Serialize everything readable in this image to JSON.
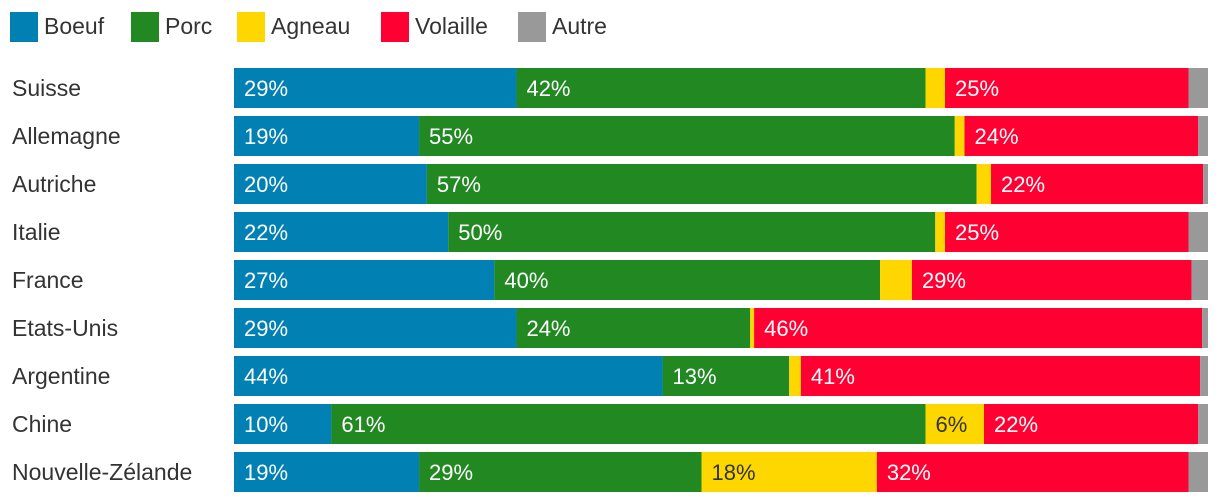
{
  "chart_data": {
    "type": "bar",
    "orientation": "horizontal",
    "stacked": true,
    "normalized": true,
    "legend_position": "top-left",
    "categories": [
      "Suisse",
      "Allemagne",
      "Autriche",
      "Italie",
      "France",
      "Etats-Unis",
      "Argentine",
      "Chine",
      "Nouvelle-Zélande"
    ],
    "series": [
      {
        "name": "Boeuf",
        "color": "#0080b3",
        "label_color": "#ffffff",
        "values": [
          29,
          19,
          20,
          22,
          27,
          29,
          44,
          10,
          19
        ],
        "labels": [
          "29%",
          "19%",
          "20%",
          "22%",
          "27%",
          "29%",
          "44%",
          "10%",
          "19%"
        ]
      },
      {
        "name": "Porc",
        "color": "#228822",
        "label_color": "#ffffff",
        "values": [
          42,
          55,
          57,
          50,
          40,
          24,
          13,
          61,
          29
        ],
        "labels": [
          "42%",
          "55%",
          "57%",
          "50%",
          "40%",
          "24%",
          "13%",
          "61%",
          "29%"
        ]
      },
      {
        "name": "Agneau",
        "color": "#ffd700",
        "label_color": "#333333",
        "values": [
          2,
          1,
          1.5,
          1,
          3.3,
          0.4,
          1.2,
          6,
          18
        ],
        "labels": [
          "",
          "",
          "",
          "",
          "",
          "",
          "",
          "6%",
          "18%"
        ]
      },
      {
        "name": "Volaille",
        "color": "#ff0033",
        "label_color": "#ffffff",
        "values": [
          25,
          24,
          22,
          25,
          29,
          46,
          41,
          22,
          32
        ],
        "labels": [
          "25%",
          "24%",
          "22%",
          "25%",
          "29%",
          "46%",
          "41%",
          "22%",
          "32%"
        ]
      },
      {
        "name": "Autre",
        "color": "#999999",
        "label_color": "#ffffff",
        "values": [
          2,
          1,
          0.5,
          2,
          1.7,
          0.6,
          0.8,
          1,
          2
        ],
        "labels": [
          "",
          "",
          "",
          "",
          "",
          "",
          "",
          "",
          ""
        ]
      }
    ]
  }
}
